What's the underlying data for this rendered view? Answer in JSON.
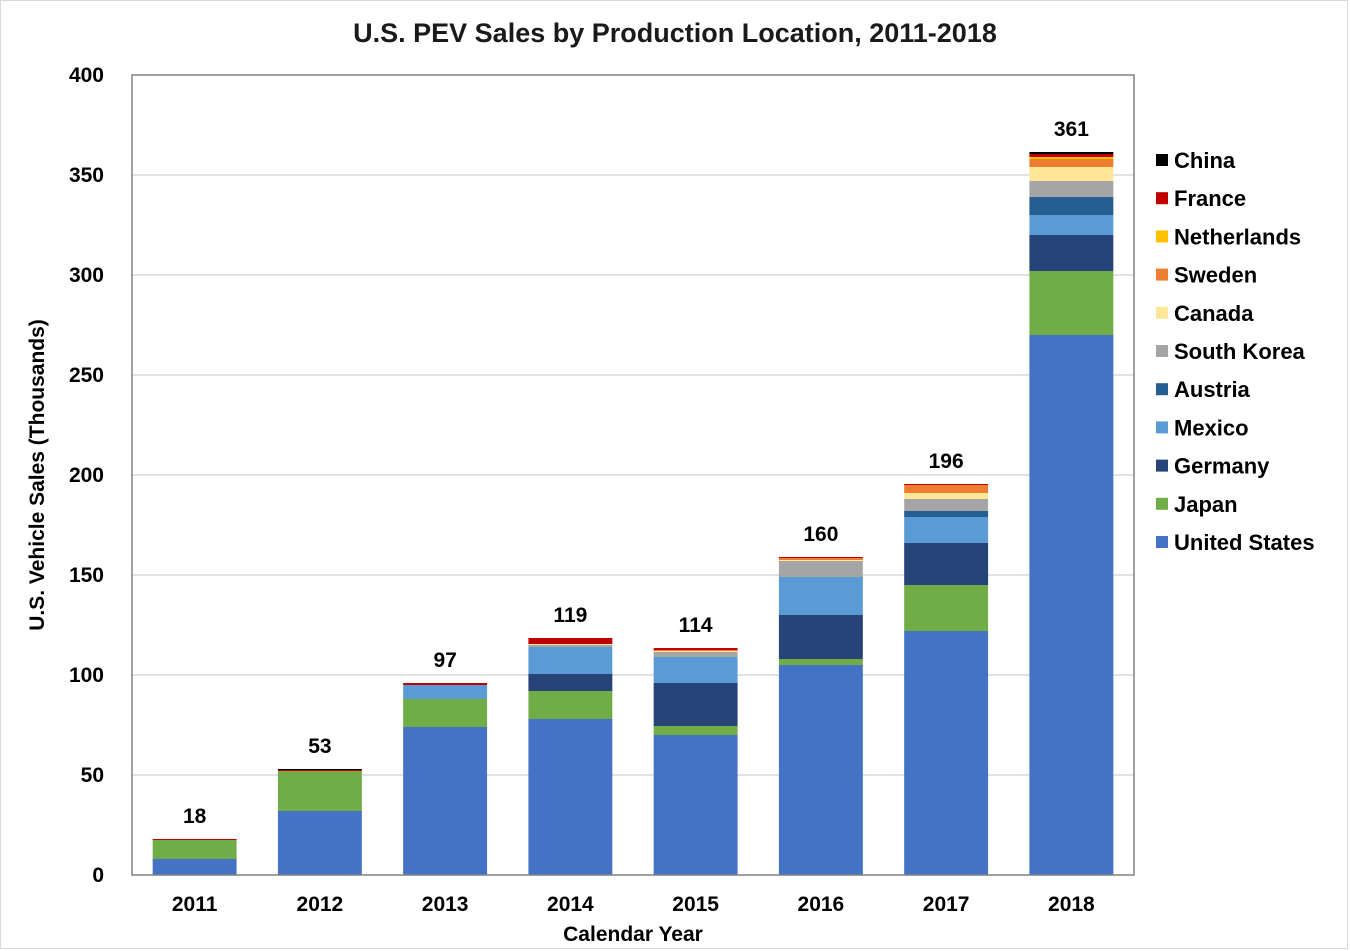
{
  "chart_data": {
    "type": "bar",
    "stacked": true,
    "title": "U.S. PEV Sales by Production Location, 2011-2018",
    "xlabel": "Calendar Year",
    "ylabel": "U.S. Vehicle Sales (Thousands)",
    "ylim": [
      0,
      400
    ],
    "yticks": [
      0,
      50,
      100,
      150,
      200,
      250,
      300,
      350,
      400
    ],
    "grid": true,
    "legend_position": "right",
    "categories": [
      "2011",
      "2012",
      "2013",
      "2014",
      "2015",
      "2016",
      "2017",
      "2018"
    ],
    "totals": [
      "18",
      "53",
      "97",
      "119",
      "114",
      "160",
      "196",
      "361"
    ],
    "series": [
      {
        "name": "United States",
        "color": "#4472C4",
        "values": [
          8,
          32,
          74,
          78,
          70,
          105,
          122,
          270
        ]
      },
      {
        "name": "Japan",
        "color": "#70AD47",
        "values": [
          9.5,
          20,
          14,
          14,
          4.5,
          3,
          23,
          32
        ]
      },
      {
        "name": "Germany",
        "color": "#264478",
        "values": [
          0,
          0,
          0,
          8.5,
          21.5,
          22,
          21,
          18
        ]
      },
      {
        "name": "Mexico",
        "color": "#5B9BD5",
        "values": [
          0,
          0,
          7,
          13.5,
          13,
          19,
          13,
          10
        ]
      },
      {
        "name": "Austria",
        "color": "#255E91",
        "values": [
          0,
          0,
          0,
          0,
          0,
          0,
          3,
          9
        ]
      },
      {
        "name": "South Korea",
        "color": "#A5A5A5",
        "values": [
          0,
          0,
          0,
          1,
          2.5,
          8,
          6,
          8
        ]
      },
      {
        "name": "Canada",
        "color": "#FFE699",
        "values": [
          0,
          0,
          0,
          0.5,
          0.5,
          0.5,
          3,
          7
        ]
      },
      {
        "name": "Sweden",
        "color": "#ED7D31",
        "values": [
          0,
          0,
          0,
          0,
          0.5,
          1,
          4,
          4
        ]
      },
      {
        "name": "Netherlands",
        "color": "#FFC000",
        "values": [
          0,
          0,
          0,
          0,
          0,
          0,
          0,
          1
        ]
      },
      {
        "name": "France",
        "color": "#C00000",
        "values": [
          0.5,
          0.5,
          1,
          3,
          1,
          0.5,
          0.5,
          1.5
        ]
      },
      {
        "name": "China",
        "color": "#000000",
        "values": [
          0,
          0.5,
          0,
          0,
          0,
          0,
          0,
          1
        ]
      }
    ],
    "legend_order": [
      "China",
      "France",
      "Netherlands",
      "Sweden",
      "Canada",
      "South Korea",
      "Austria",
      "Mexico",
      "Germany",
      "Japan",
      "United States"
    ]
  }
}
